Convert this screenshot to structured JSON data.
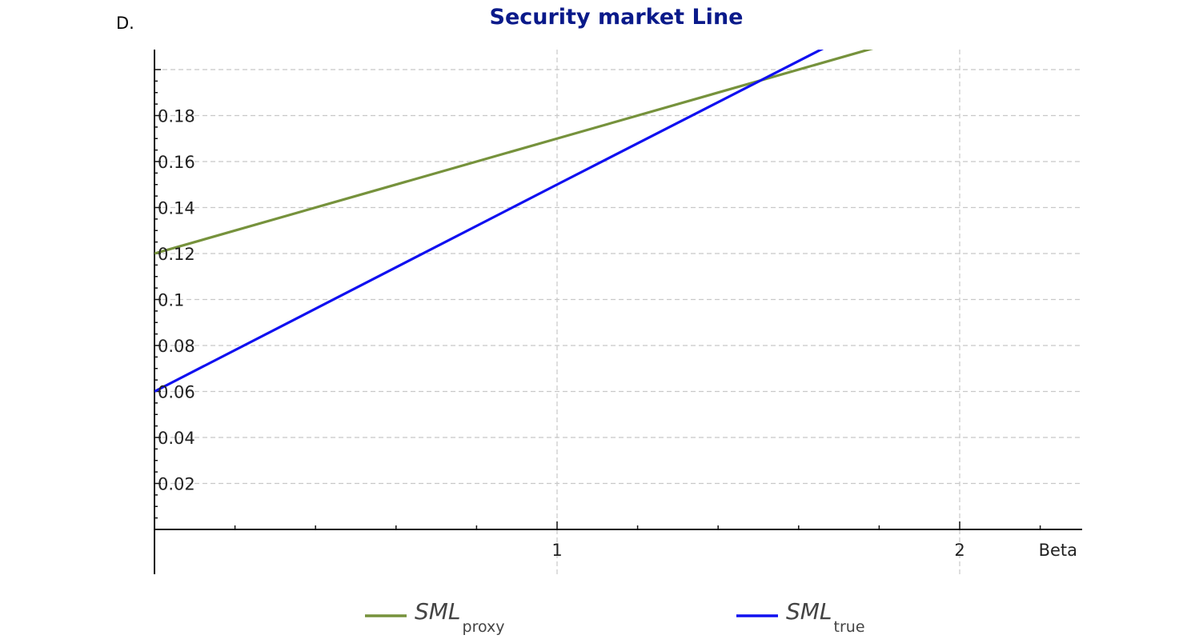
{
  "figure_label": "D.",
  "chart_data": {
    "type": "line",
    "title": "Security market Line",
    "xlabel": "Beta",
    "ylabel": "",
    "xlim": [
      0,
      2.3
    ],
    "ylim": [
      0,
      0.2
    ],
    "x_ticks": [
      1,
      2
    ],
    "x_tick_labels": [
      "1",
      "2"
    ],
    "y_ticks": [
      0.02,
      0.04,
      0.06,
      0.08,
      0.1,
      0.12,
      0.14,
      0.16,
      0.18
    ],
    "y_tick_labels": [
      "0.02",
      "0.04",
      "0.06",
      "0.08",
      "0.1",
      "0.12",
      "0.14",
      "0.16",
      "0.18"
    ],
    "grid": true,
    "legend_position": "bottom",
    "series": [
      {
        "label": "SML",
        "subscript": "proxy",
        "color": "#76923c",
        "x": [
          0,
          1,
          1.8
        ],
        "y": [
          0.12,
          0.17,
          0.21
        ]
      },
      {
        "label": "SML",
        "subscript": "true",
        "color": "#1010f0",
        "x": [
          0,
          1,
          1.67
        ],
        "y": [
          0.06,
          0.15,
          0.21
        ]
      }
    ]
  }
}
